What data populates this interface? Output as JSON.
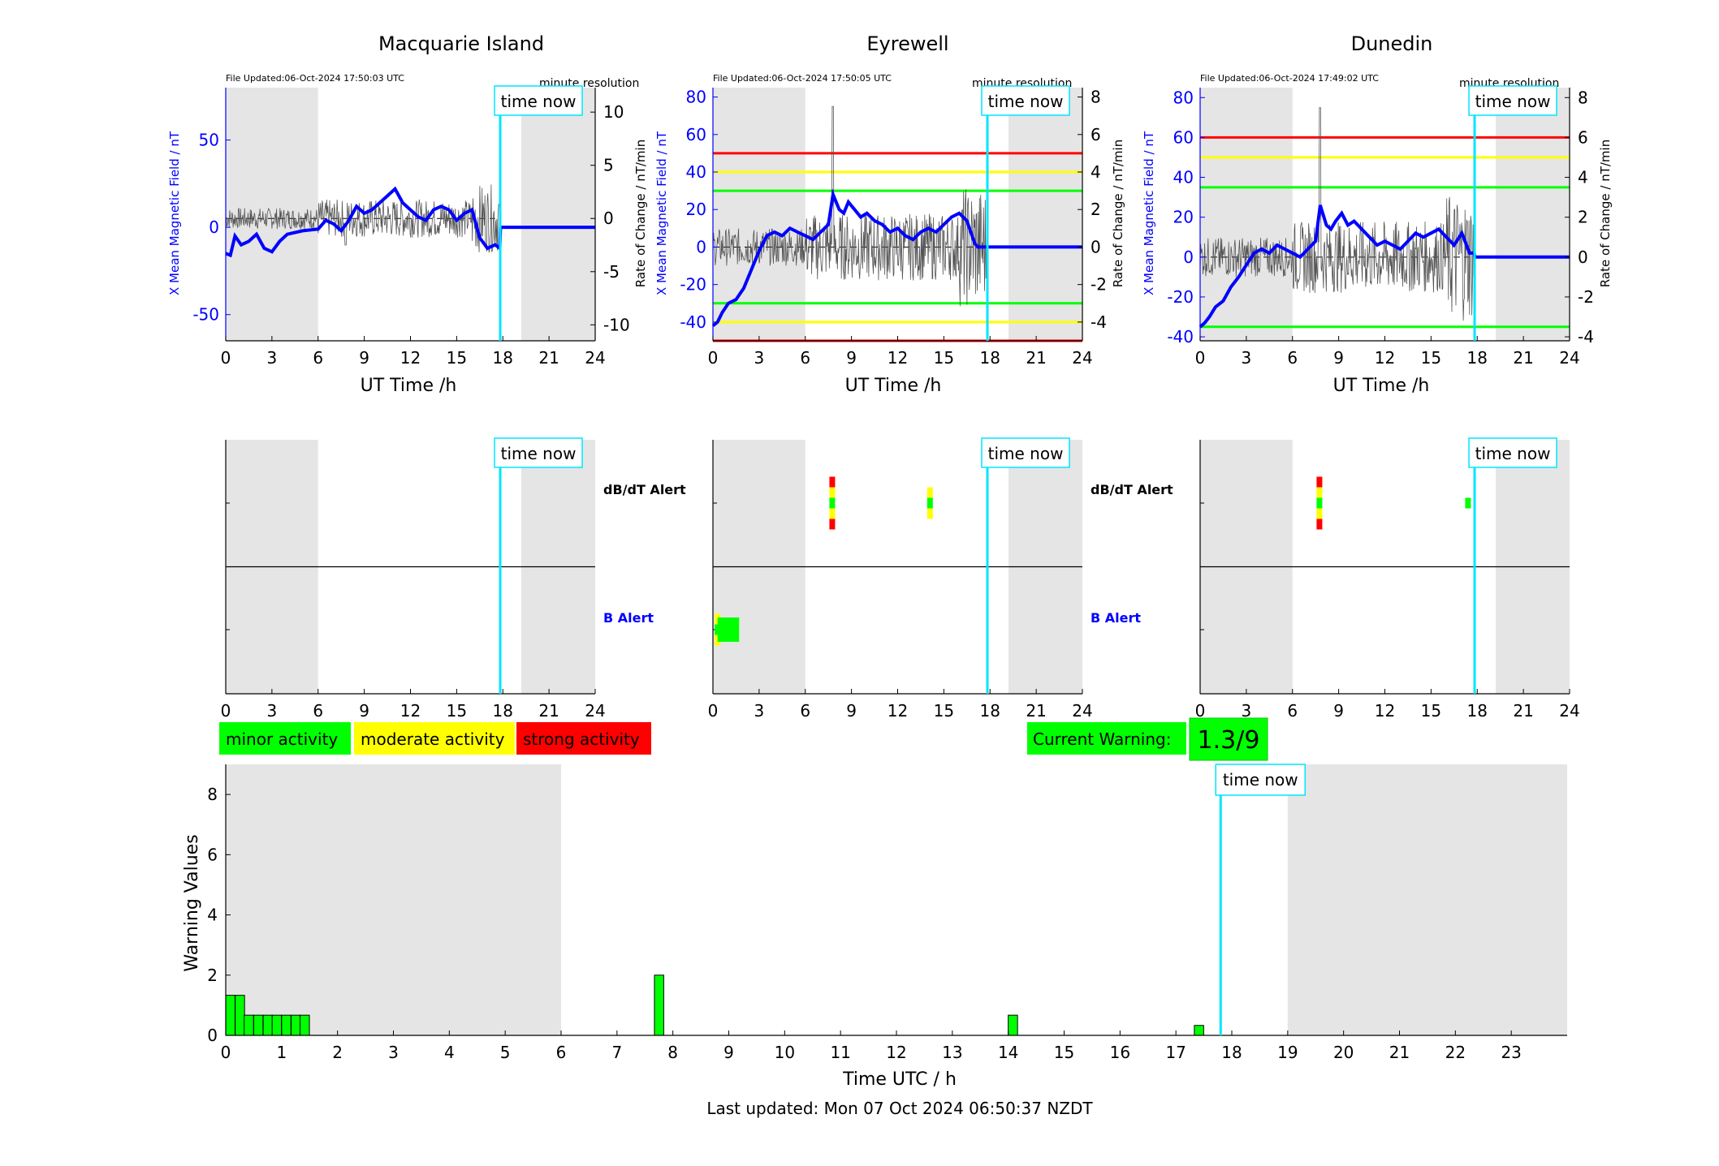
{
  "stations": [
    {
      "name": "Macquarie Island",
      "file_updated": "File Updated:06-Oct-2024 17:50:03 UTC",
      "resolution_label": "minute resolution",
      "time_now_label": "time now",
      "left_ylabel": "X Mean Magnetic Field / nT",
      "right_ylabel": "",
      "xlabel": "UT Time /h",
      "left_ylim": [
        -65,
        80
      ],
      "left_ticks": [
        -50,
        0,
        50
      ],
      "right_ylim": [
        -11.5,
        12.3
      ],
      "right_ticks": [
        -10,
        -5,
        0,
        5,
        10
      ],
      "thresholds": [],
      "x_ticks": [
        0,
        3,
        6,
        9,
        12,
        15,
        18,
        21,
        24
      ],
      "time_now": 17.83,
      "shaded": [
        [
          0,
          6
        ],
        [
          19.2,
          24
        ]
      ],
      "field_trace": [
        [
          0,
          -15
        ],
        [
          0.3,
          -16
        ],
        [
          0.6,
          -5
        ],
        [
          1,
          -10
        ],
        [
          1.5,
          -8
        ],
        [
          2,
          -4
        ],
        [
          2.5,
          -12
        ],
        [
          3,
          -14
        ],
        [
          3.5,
          -8
        ],
        [
          4,
          -4
        ],
        [
          5,
          -2
        ],
        [
          6,
          -1
        ],
        [
          6.5,
          4
        ],
        [
          7,
          2
        ],
        [
          7.5,
          -2
        ],
        [
          8,
          4
        ],
        [
          8.5,
          12
        ],
        [
          9,
          8
        ],
        [
          9.5,
          10
        ],
        [
          10,
          14
        ],
        [
          10.5,
          18
        ],
        [
          11,
          22
        ],
        [
          11.5,
          14
        ],
        [
          12,
          10
        ],
        [
          12.5,
          6
        ],
        [
          13,
          4
        ],
        [
          13.5,
          10
        ],
        [
          14,
          12
        ],
        [
          14.5,
          10
        ],
        [
          15,
          4
        ],
        [
          15.5,
          8
        ],
        [
          16,
          10
        ],
        [
          16.5,
          -6
        ],
        [
          17,
          -12
        ],
        [
          17.5,
          -10
        ],
        [
          17.8,
          -12
        ],
        [
          17.85,
          0
        ],
        [
          24,
          0
        ]
      ],
      "dbdt_alerts": [],
      "b_alerts": []
    },
    {
      "name": "Eyrewell",
      "file_updated": "File Updated:06-Oct-2024 17:50:05 UTC",
      "resolution_label": "minute resolution",
      "time_now_label": "time now",
      "left_ylabel": "X Mean Magnetic Field / nT",
      "right_ylabel": "Rate of Change / nT/min",
      "xlabel": "UT Time /h",
      "left_ylim": [
        -50,
        85
      ],
      "left_ticks": [
        -40,
        -20,
        0,
        20,
        40,
        60,
        80
      ],
      "right_ylim": [
        -5,
        8.5
      ],
      "right_ticks": [
        -4,
        -2,
        0,
        2,
        4,
        6,
        8
      ],
      "thresholds": [
        {
          "value": 50,
          "color": "#ff0000"
        },
        {
          "value": 40,
          "color": "#ffff00"
        },
        {
          "value": 30,
          "color": "#00ff00"
        },
        {
          "value": -30,
          "color": "#00ff00"
        },
        {
          "value": -40,
          "color": "#ffff00"
        },
        {
          "value": -50,
          "color": "#ff0000"
        }
      ],
      "x_ticks": [
        0,
        3,
        6,
        9,
        12,
        15,
        18,
        21,
        24
      ],
      "time_now": 17.83,
      "shaded": [
        [
          0,
          6
        ],
        [
          19.2,
          24
        ]
      ],
      "field_trace": [
        [
          0,
          -42
        ],
        [
          0.3,
          -40
        ],
        [
          0.6,
          -35
        ],
        [
          1,
          -30
        ],
        [
          1.5,
          -28
        ],
        [
          2,
          -22
        ],
        [
          2.5,
          -12
        ],
        [
          3,
          -2
        ],
        [
          3.5,
          6
        ],
        [
          4,
          8
        ],
        [
          4.5,
          6
        ],
        [
          5,
          10
        ],
        [
          5.5,
          8
        ],
        [
          6,
          6
        ],
        [
          6.5,
          4
        ],
        [
          7,
          8
        ],
        [
          7.5,
          12
        ],
        [
          7.8,
          28
        ],
        [
          8.2,
          20
        ],
        [
          8.5,
          18
        ],
        [
          8.8,
          24
        ],
        [
          9.2,
          20
        ],
        [
          9.6,
          16
        ],
        [
          10,
          18
        ],
        [
          10.5,
          14
        ],
        [
          11,
          12
        ],
        [
          11.5,
          8
        ],
        [
          12,
          10
        ],
        [
          12.5,
          6
        ],
        [
          13,
          4
        ],
        [
          13.5,
          8
        ],
        [
          14,
          10
        ],
        [
          14.5,
          8
        ],
        [
          15,
          12
        ],
        [
          15.5,
          16
        ],
        [
          16,
          18
        ],
        [
          16.5,
          14
        ],
        [
          17,
          2
        ],
        [
          17.2,
          0
        ],
        [
          24,
          0
        ]
      ],
      "dbdt_alerts": [
        {
          "hour": 7.75,
          "levels": [
            [
              "#ff0000",
              "#ffff00",
              "#00ff00",
              "#ffff00",
              "#ff0000"
            ]
          ]
        },
        {
          "hour": 14.1,
          "levels": [
            [
              "#ffff00",
              "#00ff00",
              "#ffff00"
            ]
          ]
        }
      ],
      "b_alerts": [
        {
          "hour": 0.3,
          "levels": [
            [
              "#ffff00",
              "#00ff00",
              "#ffff00"
            ]
          ],
          "wide_to": 1.7
        }
      ]
    },
    {
      "name": "Dunedin",
      "file_updated": "File Updated:06-Oct-2024 17:49:02 UTC",
      "resolution_label": "minute resolution",
      "time_now_label": "time now",
      "left_ylabel": "X Mean Magnetic Field / nT",
      "right_ylabel": "Rate of Change / nT/min",
      "xlabel": "UT Time /h",
      "left_ylim": [
        -42,
        85
      ],
      "left_ticks": [
        -40,
        -20,
        0,
        20,
        40,
        60,
        80
      ],
      "right_ylim": [
        -4.2,
        8.5
      ],
      "right_ticks": [
        -4,
        -2,
        0,
        2,
        4,
        6,
        8
      ],
      "thresholds": [
        {
          "value": 60,
          "color": "#ff0000"
        },
        {
          "value": 50,
          "color": "#ffff00"
        },
        {
          "value": 35,
          "color": "#00ff00"
        },
        {
          "value": -35,
          "color": "#00ff00"
        }
      ],
      "x_ticks": [
        0,
        3,
        6,
        9,
        12,
        15,
        18,
        21,
        24
      ],
      "time_now": 17.83,
      "shaded": [
        [
          0,
          6
        ],
        [
          19.2,
          24
        ]
      ],
      "field_trace": [
        [
          0,
          -35
        ],
        [
          0.3,
          -33
        ],
        [
          0.6,
          -30
        ],
        [
          1,
          -25
        ],
        [
          1.5,
          -22
        ],
        [
          2,
          -15
        ],
        [
          2.5,
          -10
        ],
        [
          3,
          -4
        ],
        [
          3.5,
          2
        ],
        [
          4,
          4
        ],
        [
          4.5,
          2
        ],
        [
          5,
          6
        ],
        [
          5.5,
          4
        ],
        [
          6,
          2
        ],
        [
          6.5,
          0
        ],
        [
          7,
          4
        ],
        [
          7.5,
          8
        ],
        [
          7.8,
          26
        ],
        [
          8.2,
          16
        ],
        [
          8.5,
          14
        ],
        [
          8.8,
          18
        ],
        [
          9.2,
          22
        ],
        [
          9.6,
          16
        ],
        [
          10,
          18
        ],
        [
          10.5,
          14
        ],
        [
          11,
          10
        ],
        [
          11.5,
          6
        ],
        [
          12,
          8
        ],
        [
          12.5,
          6
        ],
        [
          13,
          4
        ],
        [
          13.5,
          8
        ],
        [
          14,
          12
        ],
        [
          14.5,
          10
        ],
        [
          15,
          12
        ],
        [
          15.5,
          14
        ],
        [
          16,
          10
        ],
        [
          16.5,
          6
        ],
        [
          17,
          12
        ],
        [
          17.5,
          2
        ],
        [
          17.8,
          2
        ],
        [
          17.85,
          0
        ],
        [
          24,
          0
        ]
      ],
      "dbdt_alerts": [
        {
          "hour": 7.75,
          "levels": [
            [
              "#ff0000",
              "#ffff00",
              "#00ff00",
              "#ffff00",
              "#ff0000"
            ]
          ]
        },
        {
          "hour": 17.4,
          "levels": [
            [
              "#00ff00"
            ]
          ]
        }
      ],
      "b_alerts": []
    }
  ],
  "alert_labels": {
    "dbdt": "dB/dT Alert",
    "b": "B Alert"
  },
  "legend": [
    {
      "label": "minor activity",
      "color": "#00ff00"
    },
    {
      "label": "moderate activity",
      "color": "#ffff00"
    },
    {
      "label": "strong activity",
      "color": "#ff0000"
    }
  ],
  "current_warning": {
    "label": "Current Warning:",
    "value": "1.3/9",
    "color": "#00ff00"
  },
  "chart_data": {
    "type": "bar",
    "title": "",
    "xlabel": "Time UTC / h",
    "ylabel": "Warning Values",
    "xlim": [
      0,
      24
    ],
    "ylim": [
      0,
      9
    ],
    "x_ticks": [
      0,
      1,
      2,
      3,
      4,
      5,
      6,
      7,
      8,
      9,
      10,
      11,
      12,
      13,
      14,
      15,
      16,
      17,
      18,
      19,
      20,
      21,
      22,
      23
    ],
    "y_ticks": [
      0,
      2,
      4,
      6,
      8
    ],
    "shaded": [
      [
        0,
        6
      ],
      [
        19,
        24
      ]
    ],
    "time_now": 17.8,
    "time_now_label": "time now",
    "bar_color": "#00ff00",
    "bars": [
      {
        "x": 0.0,
        "value": 1.33
      },
      {
        "x": 0.17,
        "value": 1.33
      },
      {
        "x": 0.33,
        "value": 0.67
      },
      {
        "x": 0.5,
        "value": 0.67
      },
      {
        "x": 0.67,
        "value": 0.67
      },
      {
        "x": 0.83,
        "value": 0.67
      },
      {
        "x": 1.0,
        "value": 0.67
      },
      {
        "x": 1.17,
        "value": 0.67
      },
      {
        "x": 1.33,
        "value": 0.67
      },
      {
        "x": 7.67,
        "value": 2.0
      },
      {
        "x": 14.0,
        "value": 0.67
      },
      {
        "x": 17.33,
        "value": 0.33
      }
    ]
  },
  "footer": {
    "last_updated": "Last updated: Mon 07 Oct 2024 06:50:37 NZDT"
  }
}
